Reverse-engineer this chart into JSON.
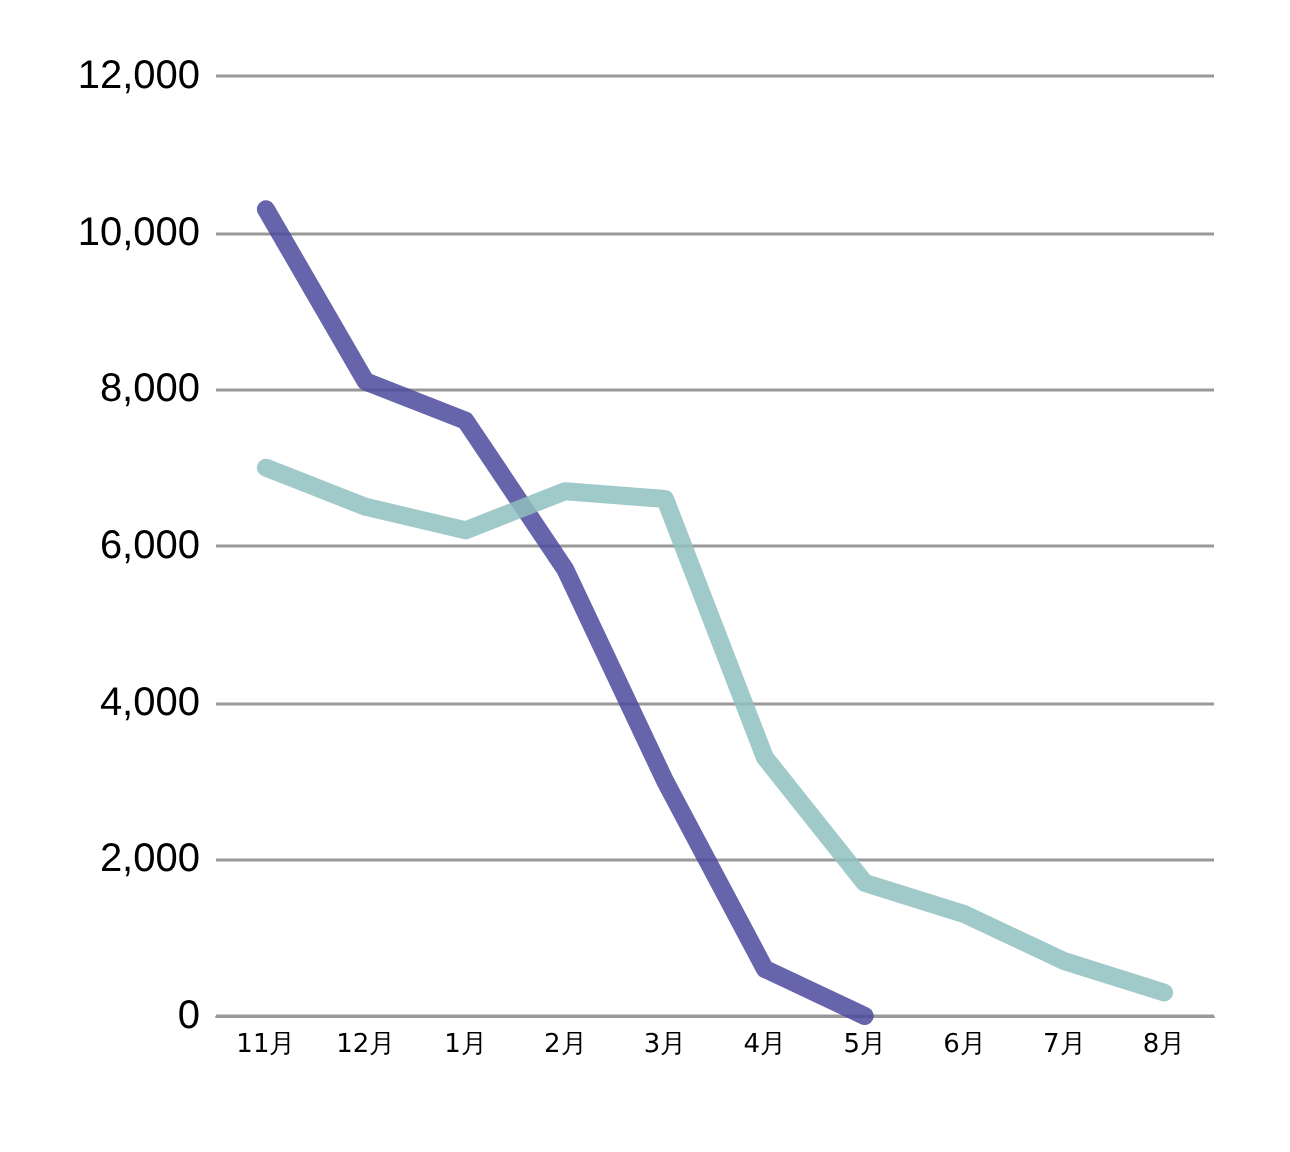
{
  "chart_data": {
    "type": "line",
    "categories": [
      "11月",
      "12月",
      "1月",
      "2月",
      "3月",
      "4月",
      "5月",
      "6月",
      "7月",
      "8月"
    ],
    "series": [
      {
        "color": "#4b4a9c",
        "values": [
          10300,
          8100,
          7600,
          5700,
          3000,
          600,
          0,
          null,
          null,
          null
        ]
      },
      {
        "color": "#8fc0c0",
        "values": [
          7000,
          6500,
          6200,
          6700,
          6600,
          3300,
          1700,
          1300,
          700,
          300
        ]
      }
    ],
    "ylim": [
      0,
      12000
    ],
    "yticks": [
      {
        "value": 0,
        "label": "0"
      },
      {
        "value": 2000,
        "label": "2,000"
      },
      {
        "value": 4000,
        "label": "4,000"
      },
      {
        "value": 6000,
        "label": "6,000"
      },
      {
        "value": 8000,
        "label": "8,000"
      },
      {
        "value": 10000,
        "label": "10,000"
      },
      {
        "value": 12000,
        "label": "12,000"
      }
    ],
    "grid": "y",
    "marker": "none",
    "line_style": "solid"
  }
}
